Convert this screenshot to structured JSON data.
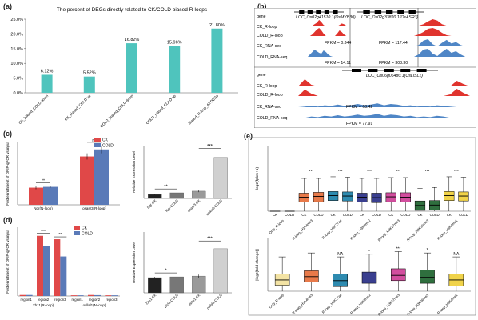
{
  "panel_letters": [
    "(a)",
    "(b)",
    "(c)",
    "(d)",
    "(e)"
  ],
  "chart_data": [
    {
      "id": "a",
      "type": "bar",
      "title": "The percent of DEGs directly related to CK/COLD biased R-loops",
      "categories": [
        "CK_biased_COLD down",
        "CK_biased_COLD up",
        "COLD_biased_COLD down",
        "COLD_biased_COLD up",
        "biased_R-loop_All DEGs"
      ],
      "values": [
        6.12,
        5.52,
        16.82,
        15.96,
        21.8
      ],
      "value_labels": [
        "6.12%",
        "5.52%",
        "16.82%",
        "15.96%",
        "21.80%"
      ],
      "ylim": [
        0,
        25
      ],
      "yticks": [
        "0.0%",
        "5.0%",
        "10.0%",
        "15.0%",
        "20.0%",
        "25.0%"
      ],
      "color": "#4fc4bd"
    },
    {
      "id": "c_left",
      "type": "bar",
      "ylabel": "Fold enrichment of DRIP-qPCR vs input",
      "categories": [
        "Ngr(N-loop)",
        "osasr3(R-loop)"
      ],
      "series": [
        {
          "name": "CK",
          "values": [
            1.1,
            3.1
          ],
          "err": [
            0.1,
            0.2
          ],
          "color": "#e04848"
        },
        {
          "name": "COLD",
          "values": [
            1.15,
            3.55
          ],
          "err": [
            0.05,
            0.25
          ],
          "color": "#5a7ab8"
        }
      ],
      "sig": [
        "**",
        "ns"
      ],
      "ylim": [
        0,
        4
      ]
    },
    {
      "id": "c_right",
      "type": "bar",
      "ylabel": "Relative Expression Level",
      "categories": [
        "Ngr-CK",
        "Ngr-COLD",
        "osasr3-CK",
        "osasr3-COLD"
      ],
      "values": [
        0.6,
        0.85,
        1.1,
        6.2
      ],
      "err": [
        0.05,
        0.1,
        0.15,
        0.9
      ],
      "colors": [
        "#222222",
        "#777777",
        "#9a9a9a",
        "#d0d0d0"
      ],
      "sig": [
        "**",
        "***"
      ],
      "ylim": [
        0,
        8
      ]
    },
    {
      "id": "d_left",
      "type": "bar",
      "ylabel": "Fold enrichment of DRIP-qPCR vs input",
      "categories": [
        "region1",
        "region2",
        "region3",
        "region1",
        "region2",
        "region3"
      ],
      "group_labels": [
        "Zh11(R-loop)",
        "osllsl1(N-loop)"
      ],
      "series": [
        {
          "name": "CK",
          "values": [
            0.3,
            17.5,
            16.5,
            0.2,
            0.3,
            0.2
          ],
          "color": "#e04848"
        },
        {
          "name": "COLD",
          "values": [
            0.3,
            14.5,
            11.5,
            0.2,
            0.25,
            0.2
          ],
          "color": "#5a7ab8"
        }
      ],
      "sig": [
        "***",
        "**"
      ],
      "ylim": [
        0,
        20
      ]
    },
    {
      "id": "d_right",
      "type": "bar",
      "ylabel": "Relative Expression Level",
      "categories": [
        "Zh11-CK",
        "Zh11-COLD",
        "osllsl1-CK",
        "osllsl1-COLD"
      ],
      "values": [
        1.0,
        1.05,
        1.1,
        2.9
      ],
      "err": [
        0.05,
        0.05,
        0.1,
        0.3
      ],
      "colors": [
        "#222222",
        "#777777",
        "#9a9a9a",
        "#d0d0d0"
      ],
      "sig": [
        "*",
        "***"
      ],
      "ylim": [
        0,
        4
      ]
    },
    {
      "id": "e_top",
      "type": "box",
      "ylabel": "log2(fpkm+1)",
      "ylim": [
        0,
        16
      ],
      "groups": [
        "Only_R-loop",
        "R-loop_H3K4me3",
        "R-loop_H3K27ac",
        "R-loop_H3K9me2",
        "R-loop_H3K27me3",
        "R-loop_H3K36me3",
        "R-loop_H3K4me1"
      ],
      "box_labels": [
        "CK",
        "COLD",
        "CK",
        "COLD",
        "CK",
        "COLD",
        "CK",
        "COLD",
        "CK",
        "COLD",
        "CK",
        "COLD",
        "CK",
        "COLD"
      ],
      "boxes": [
        {
          "q1": 0,
          "med": 0,
          "q3": 0,
          "lo": 0,
          "hi": 0,
          "color": "#cccccc"
        },
        {
          "q1": 0,
          "med": 0,
          "q3": 0,
          "lo": 0,
          "hi": 0,
          "color": "#cccccc"
        },
        {
          "q1": 2.2,
          "med": 3.4,
          "q3": 4.4,
          "lo": 0,
          "hi": 8,
          "color": "#e87a4a"
        },
        {
          "q1": 2.3,
          "med": 3.6,
          "q3": 4.6,
          "lo": 0,
          "hi": 8,
          "color": "#e87a4a"
        },
        {
          "q1": 2.6,
          "med": 3.8,
          "q3": 4.8,
          "lo": 0,
          "hi": 8.4,
          "color": "#2e8bb0"
        },
        {
          "q1": 2.5,
          "med": 3.7,
          "q3": 4.7,
          "lo": 0,
          "hi": 8.3,
          "color": "#2e8bb0"
        },
        {
          "q1": 2.2,
          "med": 3.4,
          "q3": 4.4,
          "lo": 0,
          "hi": 8,
          "color": "#3a3f8f"
        },
        {
          "q1": 2.1,
          "med": 3.3,
          "q3": 4.4,
          "lo": 0,
          "hi": 8,
          "color": "#3a3f8f"
        },
        {
          "q1": 2.3,
          "med": 3.5,
          "q3": 4.5,
          "lo": 0,
          "hi": 8.2,
          "color": "#d24e9e"
        },
        {
          "q1": 2.2,
          "med": 3.4,
          "q3": 4.5,
          "lo": 0,
          "hi": 8.2,
          "color": "#d24e9e"
        },
        {
          "q1": 0.2,
          "med": 1.4,
          "q3": 2.5,
          "lo": 0,
          "hi": 5.6,
          "color": "#2f6f3e"
        },
        {
          "q1": 0.3,
          "med": 1.5,
          "q3": 2.6,
          "lo": 0,
          "hi": 5.8,
          "color": "#2f6f3e"
        },
        {
          "q1": 2.6,
          "med": 3.8,
          "q3": 4.8,
          "lo": 0,
          "hi": 8.4,
          "color": "#f0d34a"
        },
        {
          "q1": 2.5,
          "med": 3.7,
          "q3": 4.7,
          "lo": 0,
          "hi": 8.3,
          "color": "#f0d34a"
        }
      ],
      "sig": [
        "***",
        "***",
        "***",
        "***",
        "***",
        "***"
      ]
    },
    {
      "id": "e_bottom",
      "type": "box",
      "ylabel": "|log2(fold change)|",
      "ylim": [
        0,
        4
      ],
      "categories": [
        "Only_R-loop",
        "R-loop_H3K4me3",
        "R-loop_H3K27ac",
        "R-loop_H3K9me2",
        "R-loop_H3K27me3",
        "R-loop_H3K36me3",
        "R-loop_H3K4me1"
      ],
      "boxes": [
        {
          "q1": 0.45,
          "med": 0.85,
          "q3": 1.3,
          "lo": 0,
          "hi": 2.6,
          "color": "#f3e3a4"
        },
        {
          "q1": 0.7,
          "med": 1.1,
          "q3": 1.55,
          "lo": 0,
          "hi": 2.9,
          "color": "#e87a4a"
        },
        {
          "q1": 0.35,
          "med": 0.8,
          "q3": 1.3,
          "lo": 0,
          "hi": 2.6,
          "color": "#2e8bb0"
        },
        {
          "q1": 0.6,
          "med": 1.0,
          "q3": 1.45,
          "lo": 0,
          "hi": 2.8,
          "color": "#3a3f8f"
        },
        {
          "q1": 0.8,
          "med": 1.2,
          "q3": 1.7,
          "lo": 0,
          "hi": 3.0,
          "color": "#d24e9e"
        },
        {
          "q1": 0.6,
          "med": 1.05,
          "q3": 1.6,
          "lo": 0,
          "hi": 2.9,
          "color": "#2f6f3e"
        },
        {
          "q1": 0.4,
          "med": 0.85,
          "q3": 1.3,
          "lo": 0,
          "hi": 2.6,
          "color": "#f0d34a"
        }
      ],
      "sig": [
        "",
        "---",
        "NA",
        "*",
        "***",
        "*",
        "NA"
      ]
    }
  ],
  "panel_b": {
    "tracks": [
      "gene",
      "CK_R-loop",
      "COLD_R-loop",
      "CK_RNA-seq",
      "COLD_RNA-seq"
    ],
    "top_left": {
      "gene": "LOC_Os02g41510.1(OsMYB30)",
      "fpkm_ck": "FPKM = 0.344",
      "fpkm_cold": "FPKM = 14.11"
    },
    "top_right": {
      "gene": "LOC_Os02g33820.1(OsASR3)",
      "fpkm_ck": "FPKM = 117.44",
      "fpkm_cold": "FPKM = 303.30"
    },
    "bottom": {
      "gene": "LOC_Os06g06480.1(OsLlSL1)",
      "fpkm_ck": "FPKM = 68.42",
      "fpkm_cold": "FPKM = 77.91"
    },
    "red": "#e0342e",
    "blue": "#4f86c6"
  }
}
